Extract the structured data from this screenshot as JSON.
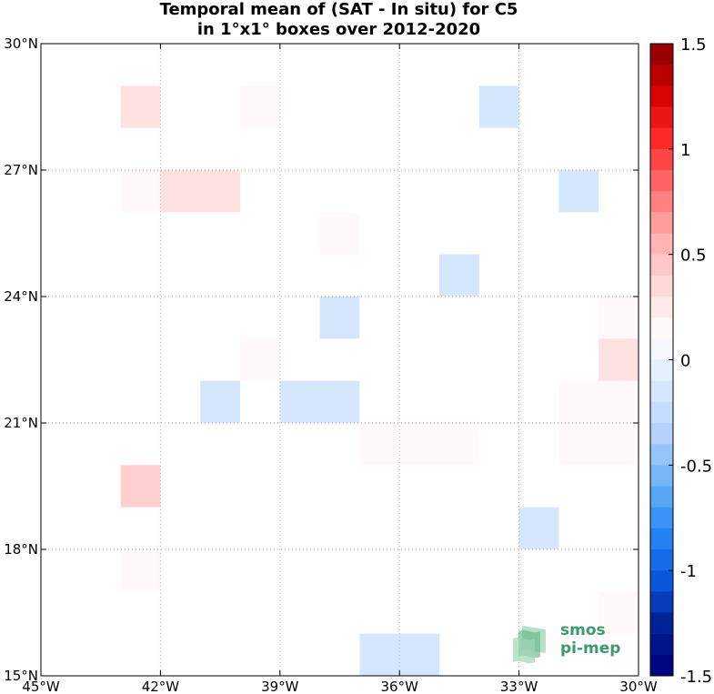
{
  "chart_data": {
    "type": "heatmap",
    "title_line1": "Temporal mean of (SAT - In situ) for C5",
    "title_line2": "in 1°x1° boxes over 2012-2020",
    "x_ticks": [
      "45°W",
      "42°W",
      "39°W",
      "36°W",
      "33°W",
      "30°W"
    ],
    "y_ticks": [
      "30°N",
      "27°N",
      "24°N",
      "21°N",
      "18°N",
      "15°N"
    ],
    "lon_range": [
      -45,
      -30
    ],
    "lat_range": [
      15,
      30
    ],
    "grid": "dotted",
    "colorbar": {
      "range": [
        -1.5,
        1.5
      ],
      "levels": 30,
      "ticks": [
        "1.5",
        "1",
        "0.5",
        "0",
        "-0.5",
        "-1",
        "-1.5"
      ]
    },
    "cells": [
      {
        "lon0": -43,
        "lat0": 28,
        "w": 1,
        "h": 1,
        "value": 0.3
      },
      {
        "lon0": -40,
        "lat0": 28,
        "w": 1,
        "h": 1,
        "value": 0.15
      },
      {
        "lon0": -34,
        "lat0": 28,
        "w": 1,
        "h": 1,
        "value": -0.15
      },
      {
        "lon0": -43,
        "lat0": 26,
        "w": 1,
        "h": 1,
        "value": 0.15
      },
      {
        "lon0": -42,
        "lat0": 26,
        "w": 2,
        "h": 1,
        "value": 0.3
      },
      {
        "lon0": -32,
        "lat0": 26,
        "w": 1,
        "h": 1,
        "value": -0.15
      },
      {
        "lon0": -38,
        "lat0": 25,
        "w": 1,
        "h": 1,
        "value": 0.15
      },
      {
        "lon0": -35,
        "lat0": 24,
        "w": 1,
        "h": 1,
        "value": -0.15
      },
      {
        "lon0": -31,
        "lat0": 23,
        "w": 1,
        "h": 1,
        "value": 0.15
      },
      {
        "lon0": -38,
        "lat0": 23,
        "w": 1,
        "h": 1,
        "value": -0.15
      },
      {
        "lon0": -40,
        "lat0": 22,
        "w": 1,
        "h": 1,
        "value": 0.15
      },
      {
        "lon0": -31,
        "lat0": 22,
        "w": 1,
        "h": 1,
        "value": 0.3
      },
      {
        "lon0": -41,
        "lat0": 21,
        "w": 1,
        "h": 1,
        "value": -0.15
      },
      {
        "lon0": -39,
        "lat0": 21,
        "w": 2,
        "h": 1,
        "value": -0.15
      },
      {
        "lon0": -32,
        "lat0": 20,
        "w": 2,
        "h": 2,
        "value": 0.15
      },
      {
        "lon0": -37,
        "lat0": 20,
        "w": 3,
        "h": 1,
        "value": 0.15
      },
      {
        "lon0": -43,
        "lat0": 19,
        "w": 1,
        "h": 1,
        "value": 0.4
      },
      {
        "lon0": -33,
        "lat0": 18,
        "w": 1,
        "h": 1,
        "value": -0.15
      },
      {
        "lon0": -43,
        "lat0": 17,
        "w": 1,
        "h": 1,
        "value": 0.15
      },
      {
        "lon0": -31,
        "lat0": 16,
        "w": 1,
        "h": 1,
        "value": 0.15
      },
      {
        "lon0": -37,
        "lat0": 15,
        "w": 2,
        "h": 1,
        "value": -0.15
      }
    ]
  },
  "logo": {
    "line1": "smos",
    "line2": "pi-mep"
  },
  "colors": {
    "map": [
      "#8b0000",
      "#d40000",
      "#ff2a2a",
      "#ff7070",
      "#ffb0b0",
      "#ffd9d9",
      "#ffffff",
      "#dbeafd",
      "#b5d3fb",
      "#6fb3f5",
      "#2a8af5",
      "#0a5ae0",
      "#001d8f",
      "#00007a"
    ],
    "logo_green": "#3d9a6b"
  }
}
